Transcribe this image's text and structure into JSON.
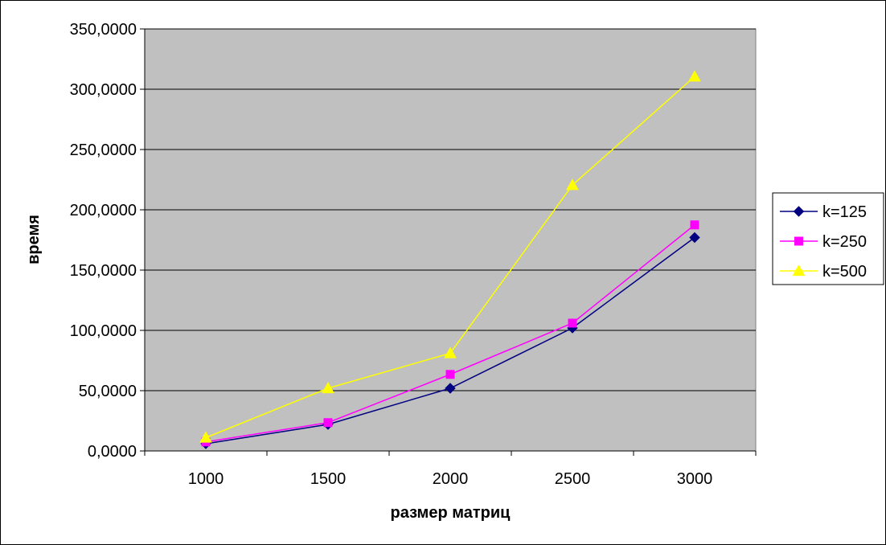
{
  "chart_data": {
    "type": "line",
    "categories": [
      "1000",
      "1500",
      "2000",
      "2500",
      "3000"
    ],
    "series": [
      {
        "name": "k=125",
        "values": [
          6.0,
          22.0,
          52.0,
          102.0,
          177.0
        ],
        "color": "#000080",
        "marker": "diamond"
      },
      {
        "name": "k=250",
        "values": [
          7.5,
          23.5,
          63.5,
          106.0,
          187.5
        ],
        "color": "#FF00FF",
        "marker": "square"
      },
      {
        "name": "k=500",
        "values": [
          11.0,
          52.0,
          81.0,
          220.5,
          310.5
        ],
        "color": "#FFFF00",
        "marker": "triangle"
      }
    ],
    "title": "",
    "xlabel": "размер матриц",
    "ylabel": "время",
    "ylim": [
      0,
      350
    ],
    "yticks": [
      "0,0000",
      "50,0000",
      "100,0000",
      "150,0000",
      "200,0000",
      "250,0000",
      "300,0000",
      "350,0000"
    ],
    "grid": true,
    "legend": "right",
    "plot_background": "#C0C0C0"
  }
}
